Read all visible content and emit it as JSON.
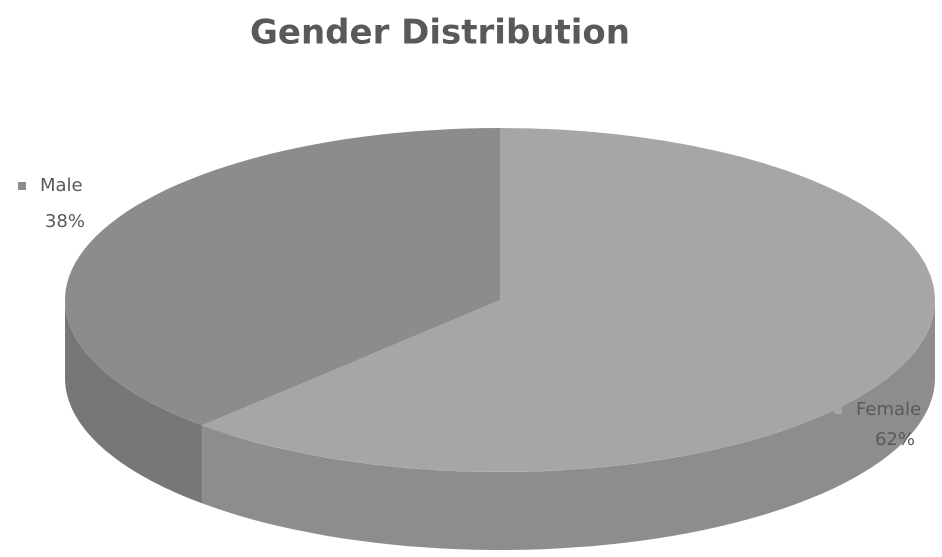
{
  "chart_data": {
    "type": "pie",
    "title": "Gender Distribution",
    "categories": [
      "Male",
      "Female"
    ],
    "values": [
      38,
      62
    ],
    "value_labels": [
      "38%",
      "62%"
    ],
    "colors": [
      "#8c8c8c",
      "#a6a6a6"
    ]
  }
}
